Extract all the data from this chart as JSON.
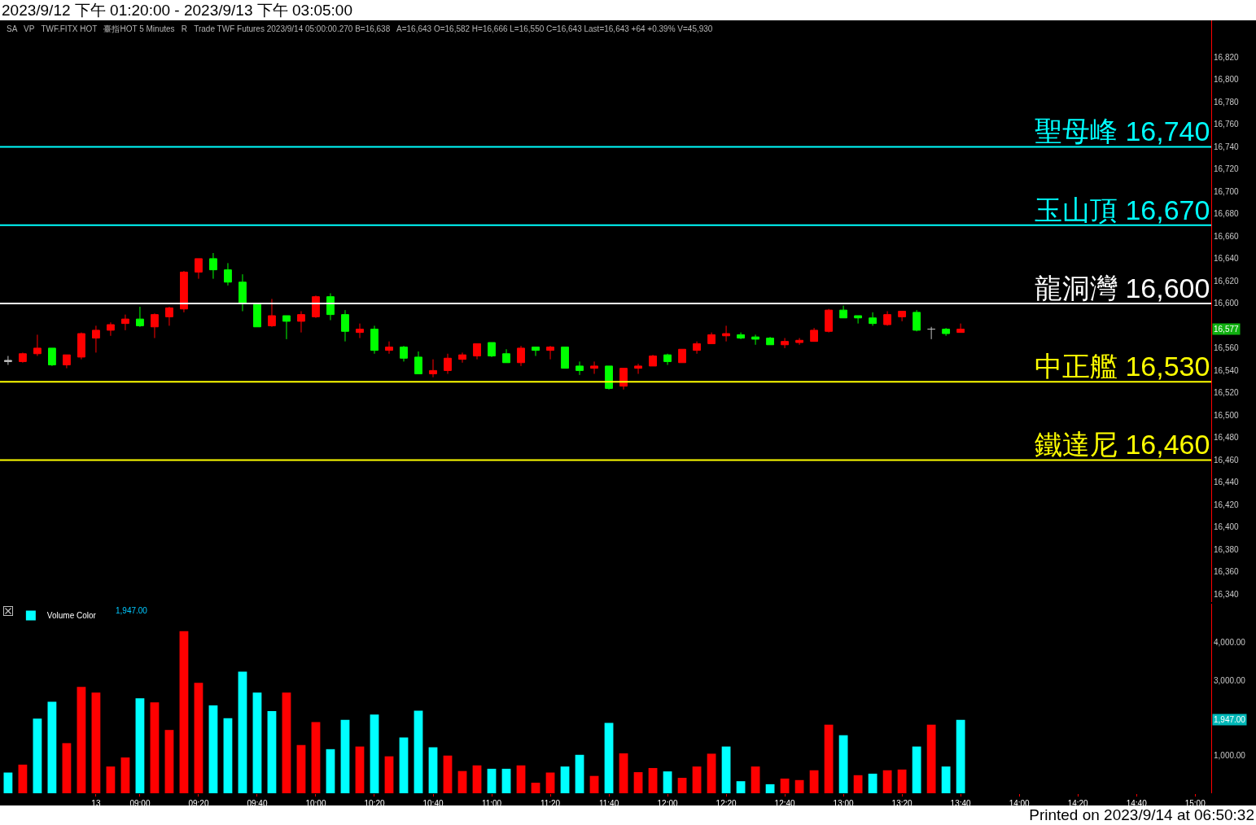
{
  "chart_data": [
    {
      "type": "candlestick",
      "title": "2023/9/12 下午 01:20:00 - 2023/9/13 下午 03:05:00",
      "categories": [
        null,
        null,
        null,
        null,
        null,
        null,
        null,
        null,
        null,
        null,
        null,
        null,
        null,
        null,
        null,
        null,
        null,
        null,
        null,
        null,
        null,
        null,
        null,
        null,
        null,
        null,
        null,
        null,
        null,
        null,
        null,
        null,
        null,
        null,
        null,
        null,
        null,
        null,
        null,
        null,
        null,
        null,
        null,
        null,
        null,
        null,
        null,
        null,
        null,
        null,
        null,
        null,
        null,
        null,
        null,
        null,
        null,
        null,
        null,
        null,
        null,
        null,
        null,
        null,
        null,
        null,
        null,
        null,
        null,
        null,
        null,
        null,
        null,
        null,
        null,
        null,
        null,
        null,
        null,
        null,
        null,
        null
      ],
      "ohlc": [
        [
          16548,
          16553,
          16545,
          16549
        ],
        [
          16548,
          16556,
          16547,
          16555
        ],
        [
          16555,
          16572,
          16553,
          16560
        ],
        [
          16560,
          16560,
          16544,
          16545
        ],
        [
          16545,
          16554,
          16542,
          16554
        ],
        [
          16552,
          16574,
          16550,
          16573
        ],
        [
          16569,
          16580,
          16556,
          16576
        ],
        [
          16576,
          16583,
          16571,
          16581
        ],
        [
          16582,
          16590,
          16576,
          16586
        ],
        [
          16586,
          16597,
          16579,
          16580
        ],
        [
          16579,
          16591,
          16569,
          16590
        ],
        [
          16588,
          16597,
          16580,
          16596
        ],
        [
          16595,
          16629,
          16592,
          16628
        ],
        [
          16628,
          16640,
          16622,
          16640
        ],
        [
          16640,
          16645,
          16622,
          16630
        ],
        [
          16630,
          16636,
          16616,
          16619
        ],
        [
          16619,
          16626,
          16593,
          16600
        ],
        [
          16599,
          16599,
          16579,
          16579
        ],
        [
          16580,
          16604,
          16579,
          16589
        ],
        [
          16589,
          16589,
          16568,
          16584
        ],
        [
          16584,
          16593,
          16574,
          16590
        ],
        [
          16588,
          16607,
          16587,
          16606
        ],
        [
          16606,
          16609,
          16585,
          16590
        ],
        [
          16590,
          16594,
          16566,
          16575
        ],
        [
          16574,
          16582,
          16569,
          16577
        ],
        [
          16577,
          16580,
          16555,
          16558
        ],
        [
          16558,
          16566,
          16555,
          16561
        ],
        [
          16561,
          16562,
          16548,
          16551
        ],
        [
          16552,
          16557,
          16537,
          16537
        ],
        [
          16537,
          16550,
          16534,
          16540
        ],
        [
          16540,
          16555,
          16537,
          16551
        ],
        [
          16550,
          16556,
          16547,
          16554
        ],
        [
          16553,
          16564,
          16550,
          16564
        ],
        [
          16565,
          16565,
          16552,
          16553
        ],
        [
          16555,
          16559,
          16547,
          16547
        ],
        [
          16547,
          16562,
          16544,
          16560
        ],
        [
          16561,
          16561,
          16553,
          16558
        ],
        [
          16558,
          16562,
          16550,
          16561
        ],
        [
          16561,
          16561,
          16542,
          16542
        ],
        [
          16544,
          16548,
          16536,
          16540
        ],
        [
          16542,
          16548,
          16537,
          16544
        ],
        [
          16544,
          16544,
          16523,
          16524
        ],
        [
          16526,
          16542,
          16523,
          16542
        ],
        [
          16542,
          16546,
          16537,
          16544
        ],
        [
          16544,
          16554,
          16544,
          16553
        ],
        [
          16554,
          16555,
          16545,
          16548
        ],
        [
          16547,
          16559,
          16547,
          16559
        ],
        [
          16558,
          16566,
          16555,
          16564
        ],
        [
          16564,
          16574,
          16564,
          16572
        ],
        [
          16571,
          16580,
          16566,
          16573
        ],
        [
          16572,
          16574,
          16568,
          16569
        ],
        [
          16570,
          16572,
          16563,
          16568
        ],
        [
          16569,
          16570,
          16563,
          16563
        ],
        [
          16563,
          16569,
          16560,
          16566
        ],
        [
          16565,
          16569,
          16563,
          16567
        ],
        [
          16566,
          16578,
          16566,
          16576
        ],
        [
          16575,
          16595,
          16574,
          16594
        ],
        [
          16594,
          16598,
          16587,
          16587
        ],
        [
          16589,
          16589,
          16582,
          16587
        ],
        [
          16587,
          16592,
          16580,
          16582
        ],
        [
          16581,
          16593,
          16580,
          16590
        ],
        [
          16588,
          16593,
          16584,
          16593
        ],
        [
          16592,
          16594,
          16575,
          16576
        ],
        [
          16577,
          16579,
          16568,
          16577
        ],
        [
          16577,
          16578,
          16571,
          16573
        ],
        [
          16574,
          16582,
          16574,
          16577
        ],
        null,
        null,
        null,
        null,
        null,
        null,
        null,
        null,
        null,
        null,
        null,
        null,
        null,
        null,
        null,
        null
      ],
      "colors": [
        "#c0c0c0",
        "#ff0000",
        "#ff0000",
        "#00ff00",
        "#ff0000",
        "#ff0000",
        "#ff0000",
        "#ff0000",
        "#ff0000",
        "#00ff00",
        "#ff0000",
        "#ff0000",
        "#ff0000",
        "#ff0000",
        "#00ff00",
        "#00ff00",
        "#00ff00",
        "#00ff00",
        "#ff0000",
        "#00ff00",
        "#ff0000",
        "#ff0000",
        "#00ff00",
        "#00ff00",
        "#ff0000",
        "#00ff00",
        "#ff0000",
        "#00ff00",
        "#00ff00",
        "#ff0000",
        "#ff0000",
        "#ff0000",
        "#ff0000",
        "#00ff00",
        "#00ff00",
        "#ff0000",
        "#00ff00",
        "#ff0000",
        "#00ff00",
        "#00ff00",
        "#ff0000",
        "#00ff00",
        "#ff0000",
        "#ff0000",
        "#ff0000",
        "#00ff00",
        "#ff0000",
        "#ff0000",
        "#ff0000",
        "#ff0000",
        "#00ff00",
        "#00ff00",
        "#00ff00",
        "#ff0000",
        "#ff0000",
        "#ff0000",
        "#ff0000",
        "#00ff00",
        "#00ff00",
        "#00ff00",
        "#ff0000",
        "#ff0000",
        "#00ff00",
        "#c0c0c0",
        "#00ff00",
        "#ff0000",
        null,
        null,
        null,
        null,
        null,
        null,
        null,
        null,
        null,
        null,
        null,
        null,
        null,
        null,
        null,
        null
      ],
      "ylim": [
        16333,
        16853
      ],
      "yticks": [
        {
          "value": 16340,
          "label": "16,340"
        },
        {
          "value": 16360,
          "label": "16,360"
        },
        {
          "value": 16380,
          "label": "16,380"
        },
        {
          "value": 16400,
          "label": "16,400"
        },
        {
          "value": 16420,
          "label": "16,420"
        },
        {
          "value": 16440,
          "label": "16,440"
        },
        {
          "value": 16460,
          "label": "16,460"
        },
        {
          "value": 16480,
          "label": "16,480"
        },
        {
          "value": 16500,
          "label": "16,500"
        },
        {
          "value": 16520,
          "label": "16,520"
        },
        {
          "value": 16540,
          "label": "16,540"
        },
        {
          "value": 16560,
          "label": "16,560"
        },
        {
          "value": 16600,
          "label": "16,600"
        },
        {
          "value": 16620,
          "label": "16,620"
        },
        {
          "value": 16640,
          "label": "16,640"
        },
        {
          "value": 16660,
          "label": "16,660"
        },
        {
          "value": 16680,
          "label": "16,680"
        },
        {
          "value": 16700,
          "label": "16,700"
        },
        {
          "value": 16720,
          "label": "16,720"
        },
        {
          "value": 16740,
          "label": "16,740"
        },
        {
          "value": 16760,
          "label": "16,760"
        },
        {
          "value": 16780,
          "label": "16,780"
        },
        {
          "value": 16800,
          "label": "16,800"
        },
        {
          "value": 16820,
          "label": "16,820"
        }
      ],
      "tick_labels": "y",
      "ref_lines": [
        {
          "axis": "y",
          "value": 16740,
          "label": "聖母峰 16,740",
          "color": "#00ffff"
        },
        {
          "axis": "y",
          "value": 16670,
          "label": "玉山頂 16,670",
          "color": "#00ffff"
        },
        {
          "axis": "y",
          "value": 16600,
          "label": "龍洞灣 16,600",
          "color": "#ffffff"
        },
        {
          "axis": "y",
          "value": 16530,
          "label": "中正艦 16,530",
          "color": "#ffff00"
        },
        {
          "axis": "y",
          "value": 16460,
          "label": "鐵達尼 16,460",
          "color": "#ffff00"
        }
      ],
      "annotations": [
        "SA",
        "VP",
        "TWF.FITX HOT",
        "臺指HOT 5 Minutes",
        "R",
        "Trade TWF Futures 2023/9/14 05:00:00.270 B=16,638",
        "A=16,643 O=16,582 H=16,666 L=16,550 C=16,643 Last=16,643 +64 +0.39% V=45,930",
        "16,577"
      ]
    },
    {
      "type": "bar",
      "categories": [
        null,
        null,
        null,
        null,
        null,
        null,
        "13",
        null,
        null,
        "09:00",
        null,
        null,
        null,
        "09:20",
        null,
        null,
        null,
        "09:40",
        null,
        null,
        null,
        "10:00",
        null,
        null,
        null,
        "10:20",
        null,
        null,
        null,
        "10:40",
        null,
        null,
        null,
        "11:00",
        null,
        null,
        null,
        "11:20",
        null,
        null,
        null,
        "11:40",
        null,
        null,
        null,
        "12:00",
        null,
        null,
        null,
        "12:20",
        null,
        null,
        null,
        "12:40",
        null,
        null,
        null,
        "13:00",
        null,
        null,
        null,
        "13:20",
        null,
        null,
        null,
        "13:40",
        null,
        null,
        null,
        "14:00",
        null,
        null,
        null,
        "14:20",
        null,
        null,
        null,
        "14:40",
        null,
        null,
        null,
        "15:00"
      ],
      "series": [
        {
          "name": "Volume Color",
          "values": [
            550,
            760,
            1980,
            2430,
            1330,
            2820,
            2670,
            710,
            950,
            2520,
            2410,
            1680,
            4300,
            2930,
            2330,
            1990,
            3230,
            2670,
            2180,
            2670,
            1280,
            1890,
            1170,
            1950,
            1240,
            2090,
            980,
            1480,
            2190,
            1220,
            1000,
            590,
            740,
            650,
            650,
            740,
            280,
            550,
            710,
            1020,
            460,
            1870,
            1060,
            560,
            670,
            580,
            410,
            710,
            1050,
            1240,
            320,
            710,
            240,
            390,
            350,
            610,
            1820,
            1540,
            480,
            520,
            610,
            630,
            1240,
            1820,
            710,
            1947,
            null,
            null,
            null,
            null,
            null,
            null,
            null,
            null,
            null,
            null,
            null,
            null,
            null,
            null,
            null,
            null
          ],
          "colors": [
            "#00ffff",
            "#ff0000",
            "#00ffff",
            "#00ffff",
            "#ff0000",
            "#ff0000",
            "#ff0000",
            "#ff0000",
            "#ff0000",
            "#00ffff",
            "#ff0000",
            "#ff0000",
            "#ff0000",
            "#ff0000",
            "#00ffff",
            "#00ffff",
            "#00ffff",
            "#00ffff",
            "#00ffff",
            "#ff0000",
            "#ff0000",
            "#ff0000",
            "#00ffff",
            "#00ffff",
            "#ff0000",
            "#00ffff",
            "#ff0000",
            "#00ffff",
            "#00ffff",
            "#00ffff",
            "#ff0000",
            "#ff0000",
            "#ff0000",
            "#00ffff",
            "#00ffff",
            "#ff0000",
            "#ff0000",
            "#ff0000",
            "#00ffff",
            "#00ffff",
            "#ff0000",
            "#00ffff",
            "#ff0000",
            "#ff0000",
            "#ff0000",
            "#00ffff",
            "#ff0000",
            "#ff0000",
            "#ff0000",
            "#00ffff",
            "#00ffff",
            "#ff0000",
            "#00ffff",
            "#ff0000",
            "#ff0000",
            "#ff0000",
            "#ff0000",
            "#00ffff",
            "#ff0000",
            "#00ffff",
            "#ff0000",
            "#ff0000",
            "#00ffff",
            "#ff0000",
            "#00ffff",
            "#00ffff",
            null,
            null,
            null,
            null,
            null,
            null,
            null,
            null,
            null,
            null,
            null,
            null,
            null,
            null,
            null,
            null
          ]
        }
      ],
      "ylim": [
        0,
        5030
      ],
      "yticks": [
        {
          "value": 1000,
          "label": "1,000.00"
        },
        {
          "value": 3000,
          "label": "3,000.00"
        },
        {
          "value": 4000,
          "label": "4,000.00"
        }
      ],
      "legend": "top left",
      "annotations": [
        "1,947.00",
        "1,947.00",
        "Printed on 2023/9/14 at 06:50:32"
      ]
    }
  ]
}
